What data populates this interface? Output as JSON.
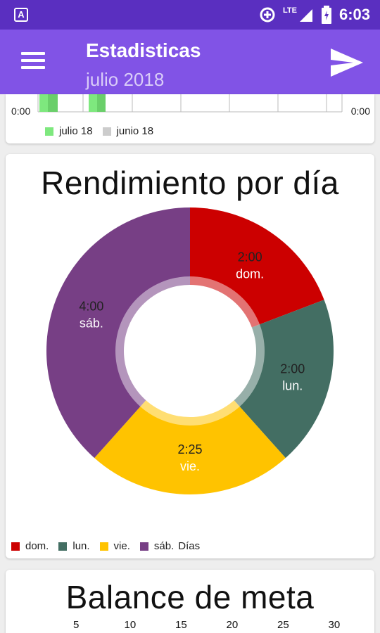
{
  "status_bar": {
    "time": "6:03",
    "network": "LTE",
    "app_icon_letter": "A"
  },
  "app_bar": {
    "title": "Estadisticas",
    "subtitle": "julio 2018"
  },
  "month_chart": {
    "y_left_label": "0:00",
    "y_right_label": "0:00",
    "legend": [
      {
        "label": "julio 18",
        "color": "#7ee87e"
      },
      {
        "label": "junio 18",
        "color": "#cccccc"
      }
    ]
  },
  "day_chart": {
    "title": "Rendimiento por día",
    "legend_title": "Días",
    "chart_data": {
      "type": "pie",
      "title": "Rendimiento por día",
      "slices": [
        {
          "label": "dom.",
          "value": 120,
          "display": "2:00",
          "color": "#cc0000"
        },
        {
          "label": "lun.",
          "value": 120,
          "display": "2:00",
          "color": "#436e63"
        },
        {
          "label": "vie.",
          "value": 145,
          "display": "2:25",
          "color": "#ffc300"
        },
        {
          "label": "sáb.",
          "value": 240,
          "display": "4:00",
          "color": "#773f85"
        }
      ],
      "legend_placement": "bottom-left"
    }
  },
  "goal_chart": {
    "title": "Balance de meta",
    "ticks": [
      "5",
      "10",
      "15",
      "20",
      "25",
      "30"
    ]
  }
}
